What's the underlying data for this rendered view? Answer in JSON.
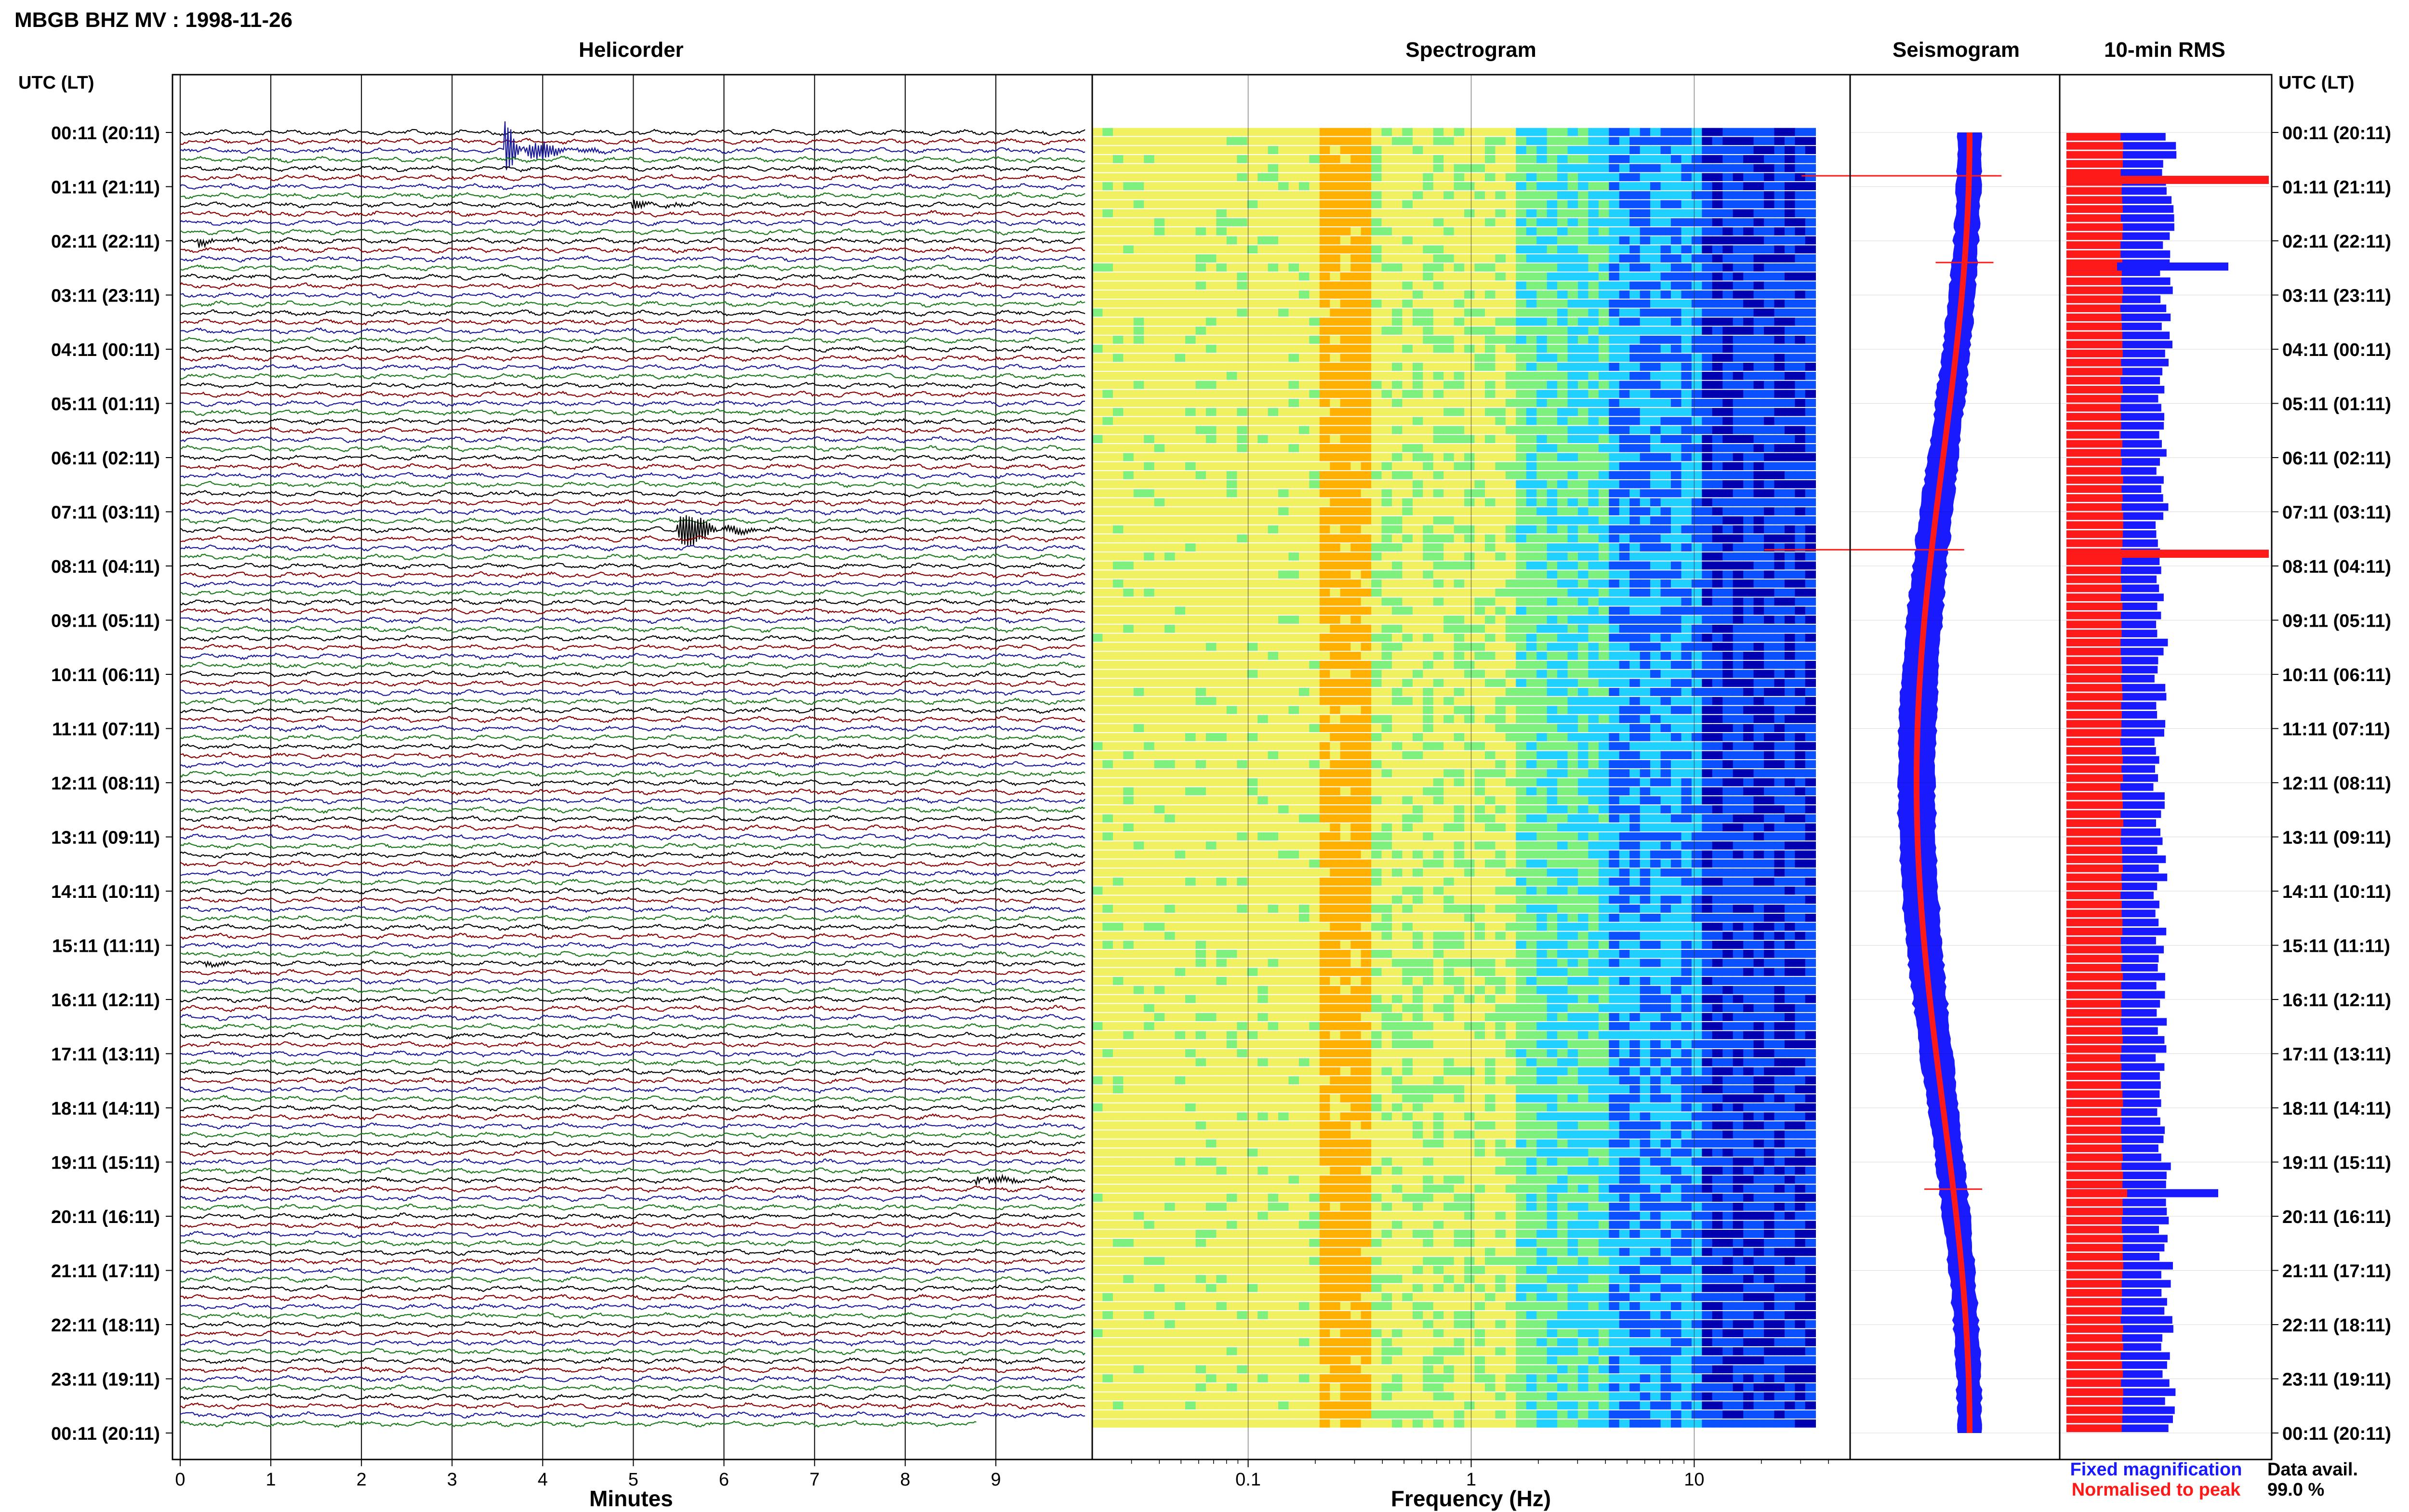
{
  "station_title": "MBGB BHZ MV : 1998-11-26",
  "panels": {
    "helicorder": "Helicorder",
    "spectrogram": "Spectrogram",
    "seismogram": "Seismogram",
    "rms": "10-min RMS"
  },
  "time_axis_label": "UTC (LT)",
  "time_labels": [
    "00:11 (20:11)",
    "01:11 (21:11)",
    "02:11 (22:11)",
    "03:11 (23:11)",
    "04:11 (00:11)",
    "05:11 (01:11)",
    "06:11 (02:11)",
    "07:11 (03:11)",
    "08:11 (04:11)",
    "09:11 (05:11)",
    "10:11 (06:11)",
    "11:11 (07:11)",
    "12:11 (08:11)",
    "13:11 (09:11)",
    "14:11 (10:11)",
    "15:11 (11:11)",
    "16:11 (12:11)",
    "17:11 (13:11)",
    "18:11 (14:11)",
    "19:11 (15:11)",
    "20:11 (16:11)",
    "21:11 (17:11)",
    "22:11 (18:11)",
    "23:11 (19:11)",
    "00:11 (20:11)"
  ],
  "legend": {
    "fixed": "Fixed magnification",
    "normalised": "Normalised to peak",
    "fixed_color": "#1a1aff",
    "normalised_color": "#ff1a1a"
  },
  "data_availability": {
    "label": "Data avail.",
    "value": "99.0 %"
  },
  "chart_data": [
    {
      "type": "line",
      "panel": "helicorder",
      "xlabel": "Minutes",
      "x_ticks": [
        "0",
        "1",
        "2",
        "3",
        "4",
        "5",
        "6",
        "7",
        "8",
        "9"
      ],
      "xlim": [
        0,
        10
      ],
      "rows": 144,
      "trace_colors": [
        "#000000",
        "#8b0000",
        "#1a1a9a",
        "#1a7a1a"
      ],
      "events": [
        {
          "row": 2,
          "minute": 3.6,
          "color": "#1a7a1a",
          "amp": 9.0
        },
        {
          "row": 8,
          "minute": 5.0,
          "color": "#1a1a9a",
          "amp": 1.6
        },
        {
          "row": 12,
          "minute": 0.2,
          "color": "#000000",
          "amp": 1.4
        },
        {
          "row": 44,
          "minute": 5.5,
          "color": "#8b0000",
          "amp": 8.0
        },
        {
          "row": 92,
          "minute": 0.3,
          "color": "#000000",
          "amp": 0.8
        },
        {
          "row": 116,
          "minute": 8.8,
          "color": "#000000",
          "amp": 2.2
        }
      ]
    },
    {
      "type": "heatmap",
      "panel": "spectrogram",
      "xlabel": "Frequency (Hz)",
      "x_scale": "log",
      "x_ticks": [
        "0.1",
        "1",
        "10"
      ],
      "xlim": [
        0.02,
        50
      ],
      "colormap": [
        "#0000b0",
        "#0a50ff",
        "#20d0ff",
        "#7df07d",
        "#f0f060",
        "#ffb000"
      ]
    },
    {
      "type": "bar",
      "panel": "seismogram",
      "series": [
        {
          "name": "Fixed magnification",
          "color": "#1a1aff"
        },
        {
          "name": "Normalised to peak",
          "color": "#ff1a1a"
        }
      ]
    },
    {
      "type": "bar",
      "panel": "rms",
      "series": [
        {
          "name": "Fixed magnification",
          "color": "#1a1aff"
        },
        {
          "name": "Normalised to peak",
          "color": "#ff1a1a"
        }
      ],
      "spikes": [
        {
          "hour": 0.8,
          "normalised": 1.0,
          "fixed": 1.0
        },
        {
          "hour": 2.4,
          "normalised": 0.25,
          "fixed": 0.8
        },
        {
          "hour": 7.7,
          "normalised": 1.0,
          "fixed": 1.0
        },
        {
          "hour": 19.5,
          "normalised": 0.3,
          "fixed": 0.75
        }
      ]
    }
  ]
}
